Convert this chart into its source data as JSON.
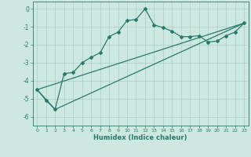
{
  "title": "",
  "xlabel": "Humidex (Indice chaleur)",
  "background_color": "#cce8e0",
  "grid_color": "#aaccc4",
  "line_color": "#2a7a6a",
  "xlim": [
    -0.5,
    23.5
  ],
  "ylim": [
    -6.5,
    0.4
  ],
  "yticks": [
    0,
    -1,
    -2,
    -3,
    -4,
    -5,
    -6
  ],
  "ytick_labels": [
    "0",
    "-1",
    "-2",
    "-3",
    "-4",
    "-5",
    "-6"
  ],
  "xticks": [
    0,
    1,
    2,
    3,
    4,
    5,
    6,
    7,
    8,
    9,
    10,
    11,
    12,
    13,
    14,
    15,
    16,
    17,
    18,
    19,
    20,
    21,
    22,
    23
  ],
  "line1_x": [
    0,
    1,
    2,
    3,
    4,
    5,
    6,
    7,
    8,
    9,
    10,
    11,
    12,
    13,
    14,
    15,
    16,
    17,
    18,
    19,
    20,
    21,
    22,
    23
  ],
  "line1_y": [
    -4.5,
    -5.1,
    -5.6,
    -3.6,
    -3.55,
    -3.0,
    -2.7,
    -2.45,
    -1.55,
    -1.3,
    -0.65,
    -0.6,
    0.0,
    -0.9,
    -1.05,
    -1.25,
    -1.55,
    -1.55,
    -1.5,
    -1.85,
    -1.8,
    -1.5,
    -1.3,
    -0.8
  ],
  "line3_x": [
    0,
    23
  ],
  "line3_y": [
    -4.5,
    -0.8
  ],
  "line4_x": [
    0,
    2,
    23
  ],
  "line4_y": [
    -4.5,
    -5.6,
    -0.8
  ]
}
